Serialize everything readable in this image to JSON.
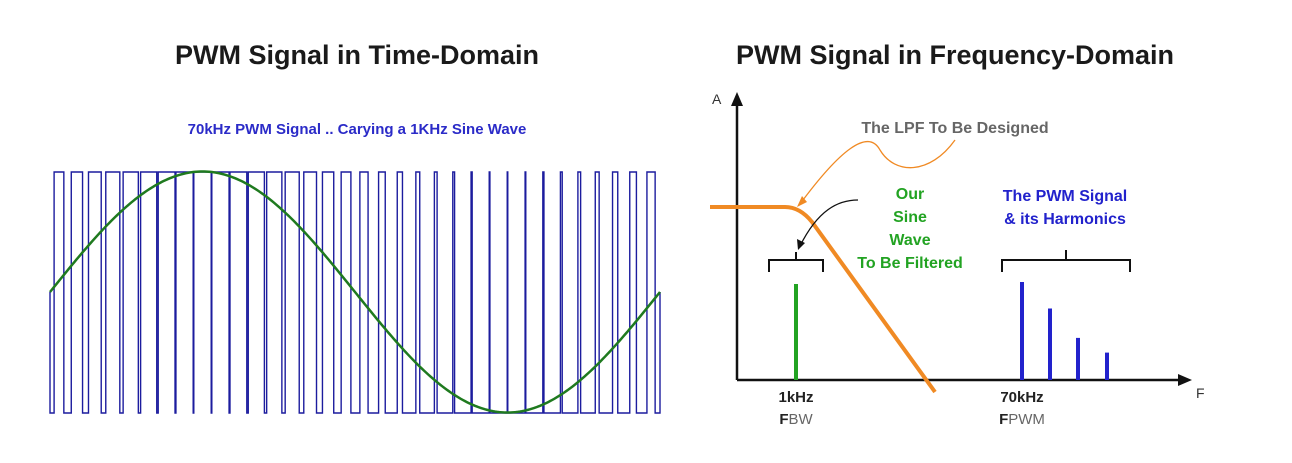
{
  "left": {
    "title": "PWM Signal in Time-Domain",
    "subtitle": "70kHz PWM Signal .. Carying a 1KHz Sine Wave"
  },
  "right": {
    "title": "PWM Signal in Frequency-Domain",
    "axis_y": "A",
    "axis_x": "F",
    "lpf_label": "The LPF To Be Designed",
    "sine_label": [
      "Our",
      "Sine",
      "Wave",
      "To Be Filtered"
    ],
    "pwm_label": [
      "The PWM Signal",
      "& its Harmonics"
    ],
    "tick_1": {
      "main": "1kHz",
      "sub_bold": "F",
      "sub": "BW"
    },
    "tick_2": {
      "main": "70kHz",
      "sub_bold": "F",
      "sub": "PWM"
    }
  },
  "colors": {
    "pwm": "#1c1c9e",
    "sine": "#1f7a1f",
    "lpf": "#f08a24",
    "green_text": "#22a322",
    "blue_text": "#2222cc",
    "gray_text": "#666666"
  },
  "chart_data": {
    "type": "line",
    "series": [
      {
        "name": "",
        "x": [
          0,
          0.25,
          0.5,
          0.75,
          1.0
        ],
        "values": [
          0,
          1,
          0,
          -1,
          0
        ]
      }
    ],
    "harmonic_bars_relative": [
      1.0,
      0.73,
      0.43,
      0.28
    ]
  }
}
